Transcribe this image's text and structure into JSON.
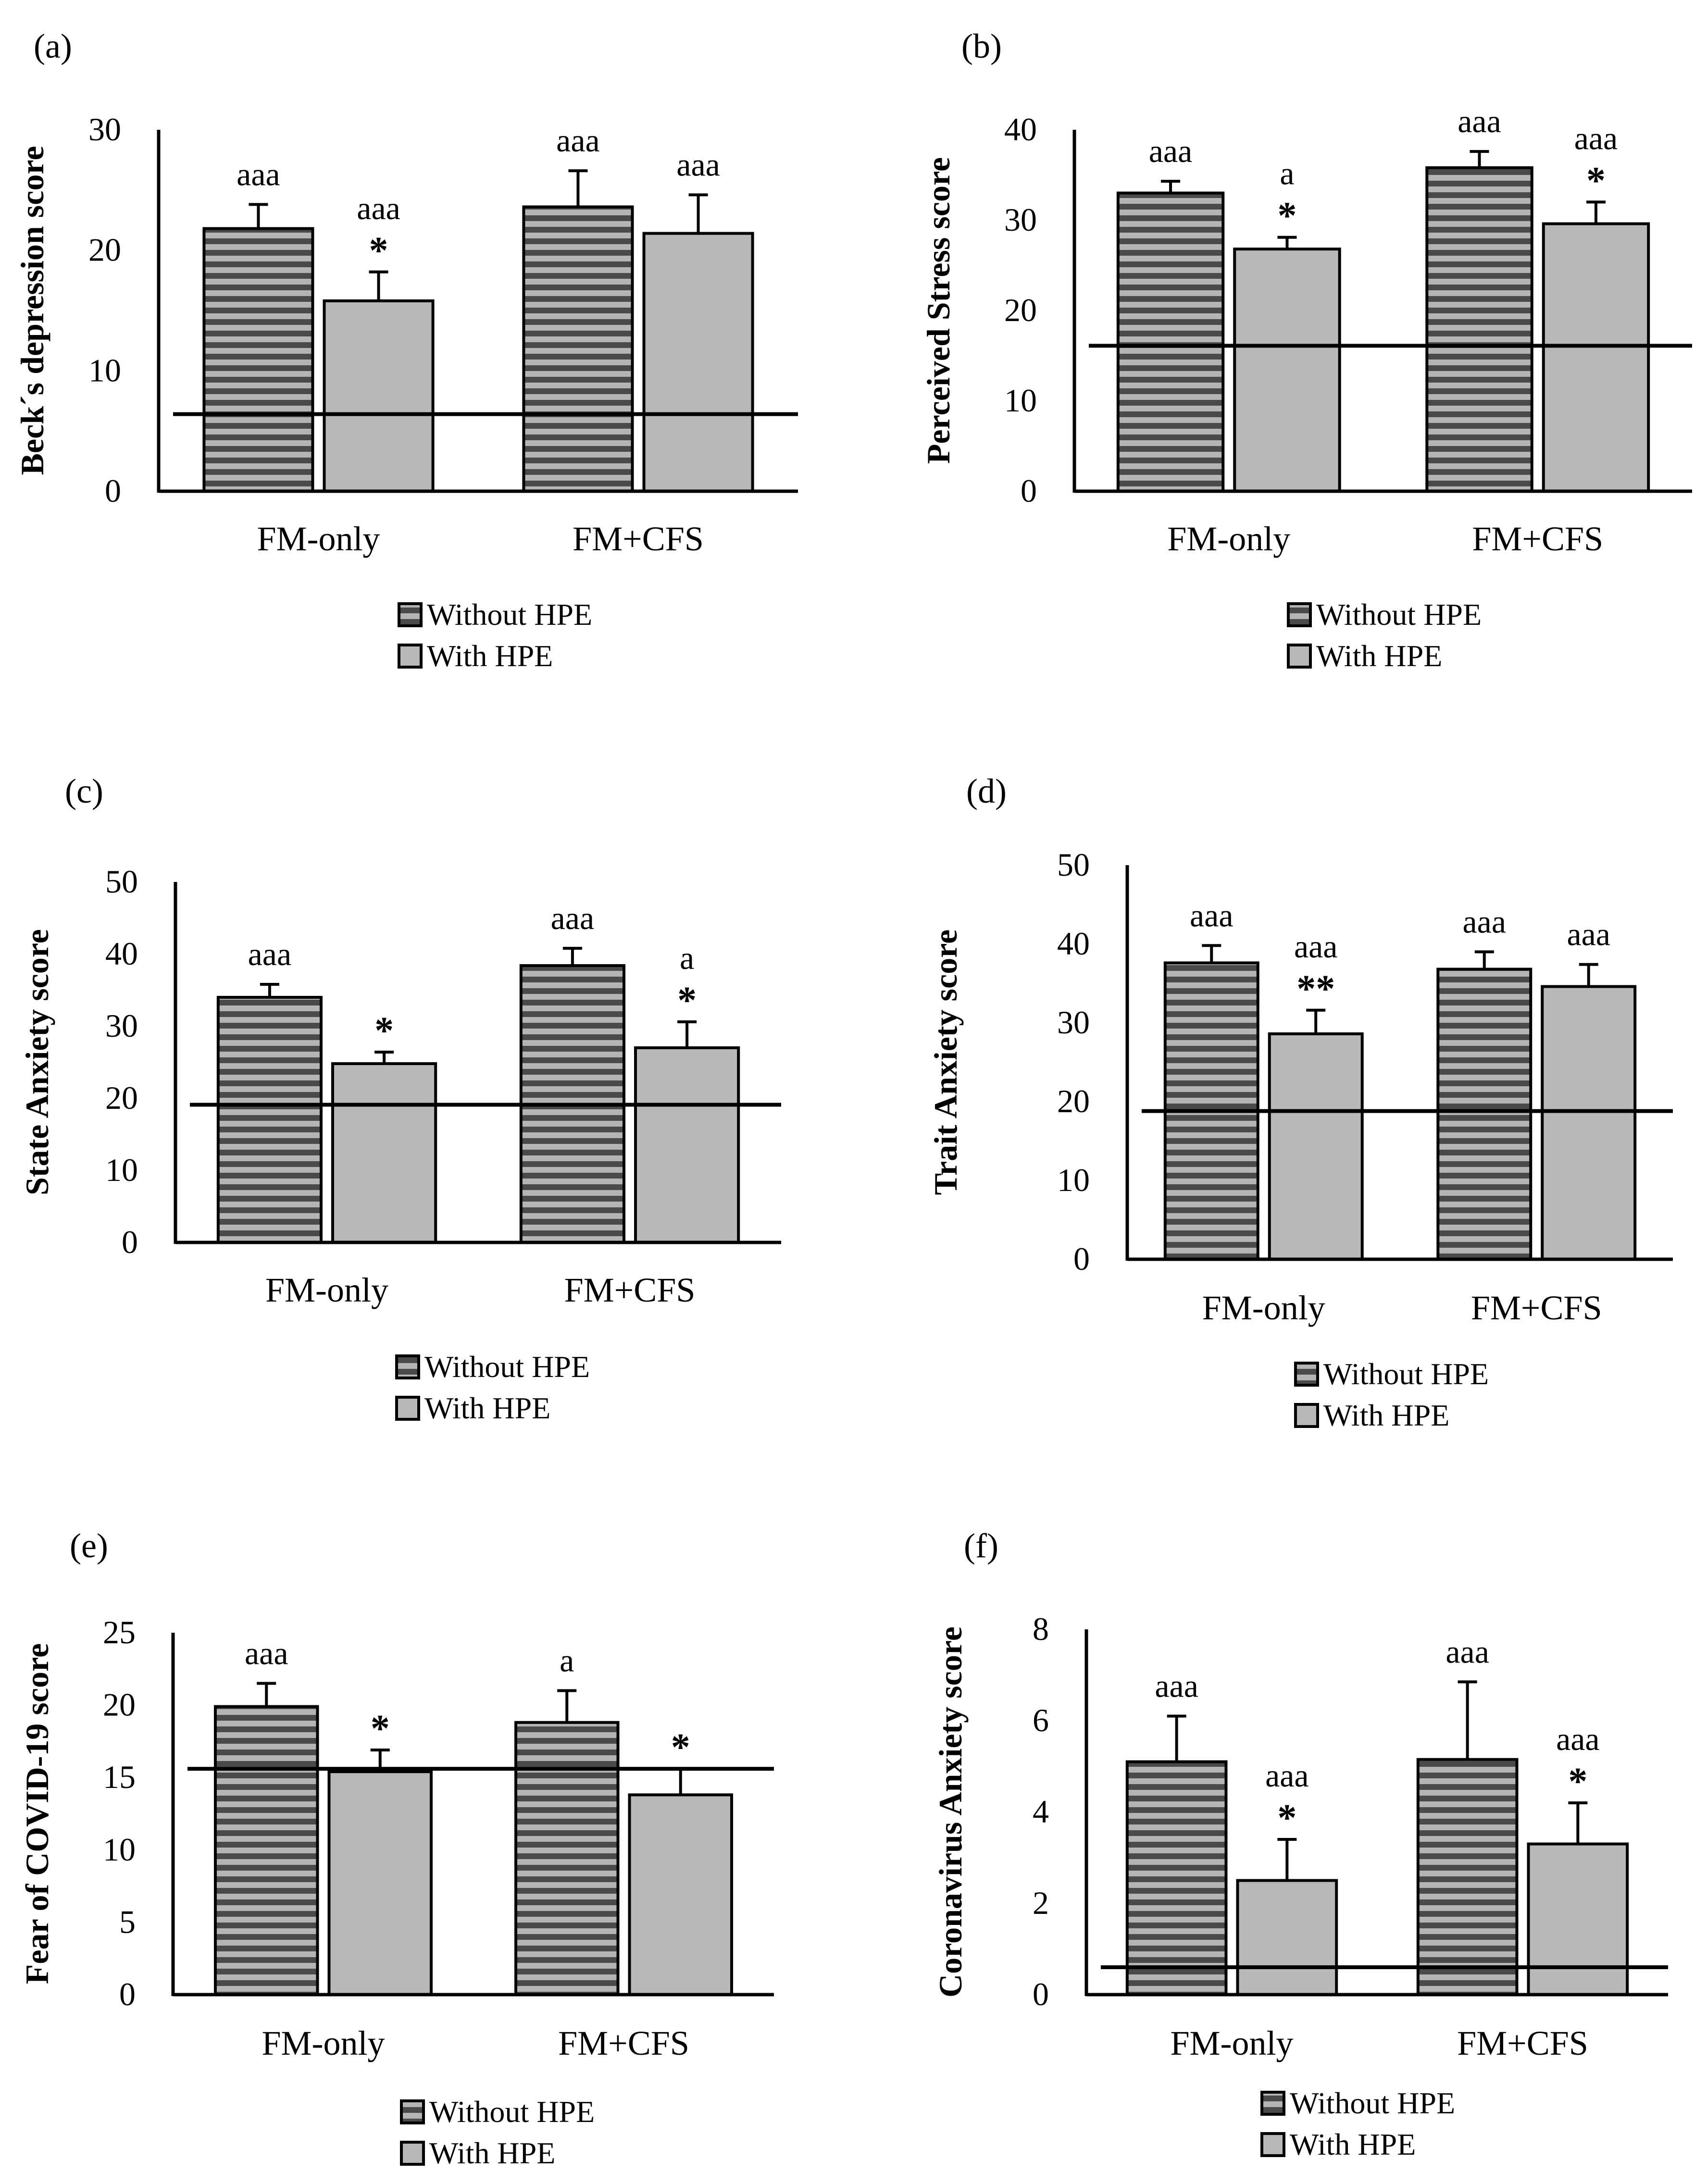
{
  "figure": {
    "legend": {
      "without": "Without HPE",
      "with": "With HPE"
    },
    "categories": [
      "FM-only",
      "FM+CFS"
    ],
    "colors": {
      "bar_without_bg": "#4a4a4a",
      "bar_without_stripe": "#b4b4b4",
      "bar_with": "#b8b8b8",
      "axis": "#000000"
    }
  },
  "chart_data": [
    {
      "type": "bar",
      "panel": "(a)",
      "ylabel": "Beck´s depression score",
      "ylim": [
        0,
        30
      ],
      "yticks": [
        0,
        10,
        20,
        30
      ],
      "categories": [
        "FM-only",
        "FM+CFS"
      ],
      "series": [
        {
          "name": "Without HPE",
          "values": [
            21.8,
            23.6
          ],
          "errors": [
            2,
            3
          ]
        },
        {
          "name": "With HPE",
          "values": [
            15.8,
            21.4
          ],
          "errors": [
            2.4,
            3.2
          ]
        }
      ],
      "reference_line": 6.4,
      "annotations": [
        {
          "series": 0,
          "category": 0,
          "text": "aaa",
          "star": ""
        },
        {
          "series": 1,
          "category": 0,
          "text": "aaa",
          "star": "*"
        },
        {
          "series": 0,
          "category": 1,
          "text": "aaa",
          "star": ""
        },
        {
          "series": 1,
          "category": 1,
          "text": "aaa",
          "star": ""
        }
      ]
    },
    {
      "type": "bar",
      "panel": "(b)",
      "ylabel": "Perceived Stress score",
      "ylim": [
        0,
        40
      ],
      "yticks": [
        0,
        10,
        20,
        30,
        40
      ],
      "categories": [
        "FM-only",
        "FM+CFS"
      ],
      "series": [
        {
          "name": "Without HPE",
          "values": [
            33,
            35.8
          ],
          "errors": [
            1.3,
            1.8
          ]
        },
        {
          "name": "With HPE",
          "values": [
            26.8,
            29.6
          ],
          "errors": [
            1.3,
            2.4
          ]
        }
      ],
      "reference_line": 16.1,
      "annotations": [
        {
          "series": 0,
          "category": 0,
          "text": "aaa",
          "star": ""
        },
        {
          "series": 1,
          "category": 0,
          "text": "a",
          "star": "*"
        },
        {
          "series": 0,
          "category": 1,
          "text": "aaa",
          "star": ""
        },
        {
          "series": 1,
          "category": 1,
          "text": "aaa",
          "star": "*"
        }
      ]
    },
    {
      "type": "bar",
      "panel": "(c)",
      "ylabel": "State Anxiety score",
      "ylim": [
        0,
        50
      ],
      "yticks": [
        0,
        10,
        20,
        30,
        40,
        50
      ],
      "categories": [
        "FM-only",
        "FM+CFS"
      ],
      "series": [
        {
          "name": "Without HPE",
          "values": [
            34,
            38.4
          ],
          "errors": [
            1.8,
            2.4
          ]
        },
        {
          "name": "With HPE",
          "values": [
            24.8,
            27
          ],
          "errors": [
            1.6,
            3.6
          ]
        }
      ],
      "reference_line": 19.1,
      "annotations": [
        {
          "series": 0,
          "category": 0,
          "text": "aaa",
          "star": ""
        },
        {
          "series": 1,
          "category": 0,
          "text": "",
          "star": "*"
        },
        {
          "series": 0,
          "category": 1,
          "text": "aaa",
          "star": ""
        },
        {
          "series": 1,
          "category": 1,
          "text": "a",
          "star": "*"
        }
      ]
    },
    {
      "type": "bar",
      "panel": "(d)",
      "ylabel": "Trait Anxiety score",
      "ylim": [
        0,
        50
      ],
      "yticks": [
        0,
        10,
        20,
        30,
        40,
        50
      ],
      "categories": [
        "FM-only",
        "FM+CFS"
      ],
      "series": [
        {
          "name": "Without HPE",
          "values": [
            37.6,
            36.8
          ],
          "errors": [
            2.2,
            2.2
          ]
        },
        {
          "name": "With HPE",
          "values": [
            28.6,
            34.6
          ],
          "errors": [
            3,
            2.8
          ]
        }
      ],
      "reference_line": 18.8,
      "annotations": [
        {
          "series": 0,
          "category": 0,
          "text": "aaa",
          "star": ""
        },
        {
          "series": 1,
          "category": 0,
          "text": "aaa",
          "star": "**"
        },
        {
          "series": 0,
          "category": 1,
          "text": "aaa",
          "star": ""
        },
        {
          "series": 1,
          "category": 1,
          "text": "aaa",
          "star": ""
        }
      ]
    },
    {
      "type": "bar",
      "panel": "(e)",
      "ylabel": "Fear of COVID-19 score",
      "ylim": [
        0,
        25
      ],
      "yticks": [
        0,
        5,
        10,
        15,
        20,
        25
      ],
      "categories": [
        "FM-only",
        "FM+CFS"
      ],
      "series": [
        {
          "name": "Without HPE",
          "values": [
            19.9,
            18.8
          ],
          "errors": [
            1.6,
            2.2
          ]
        },
        {
          "name": "With HPE",
          "values": [
            15.4,
            13.8
          ],
          "errors": [
            1.5,
            1.8
          ]
        }
      ],
      "reference_line": 15.6,
      "annotations": [
        {
          "series": 0,
          "category": 0,
          "text": "aaa",
          "star": ""
        },
        {
          "series": 1,
          "category": 0,
          "text": "",
          "star": "*"
        },
        {
          "series": 0,
          "category": 1,
          "text": "a",
          "star": ""
        },
        {
          "series": 1,
          "category": 1,
          "text": "",
          "star": "*"
        }
      ]
    },
    {
      "type": "bar",
      "panel": "(f)",
      "ylabel": "Coronavirus Anxiety score",
      "ylim": [
        0,
        8
      ],
      "yticks": [
        0,
        2,
        4,
        6,
        8
      ],
      "categories": [
        "FM-only",
        "FM+CFS"
      ],
      "series": [
        {
          "name": "Without HPE",
          "values": [
            5.1,
            5.15
          ],
          "errors": [
            1,
            1.7
          ]
        },
        {
          "name": "With HPE",
          "values": [
            2.5,
            3.3
          ],
          "errors": [
            0.9,
            0.9
          ]
        }
      ],
      "reference_line": 0.6,
      "annotations": [
        {
          "series": 0,
          "category": 0,
          "text": "aaa",
          "star": ""
        },
        {
          "series": 1,
          "category": 0,
          "text": "aaa",
          "star": "*"
        },
        {
          "series": 0,
          "category": 1,
          "text": "aaa",
          "star": ""
        },
        {
          "series": 1,
          "category": 1,
          "text": "aaa",
          "star": "*"
        }
      ]
    }
  ]
}
